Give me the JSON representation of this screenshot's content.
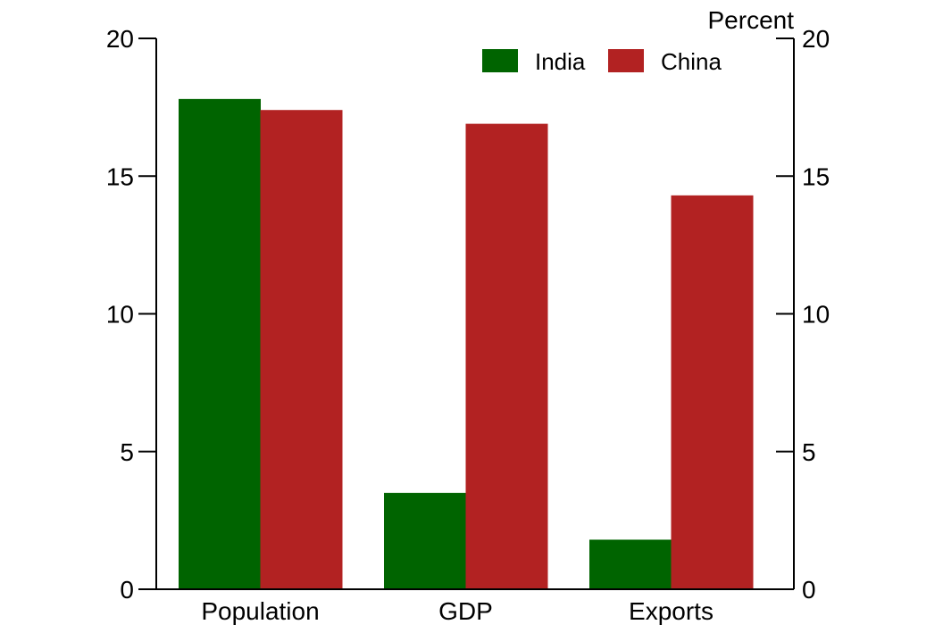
{
  "chart_data": {
    "type": "bar",
    "title": "",
    "xlabel": "",
    "ylabel": "Percent",
    "ylim": [
      0,
      20
    ],
    "yticks": [
      "0",
      "5",
      "10",
      "15",
      "20"
    ],
    "categories": [
      "Population",
      "GDP",
      "Exports"
    ],
    "series": [
      {
        "name": "India",
        "color": "#006400",
        "values": [
          17.8,
          3.5,
          1.8
        ]
      },
      {
        "name": "China",
        "color": "#B22222",
        "values": [
          17.4,
          16.9,
          14.3
        ]
      }
    ],
    "legend": "top-right",
    "grid": false,
    "axes": "left and right"
  }
}
